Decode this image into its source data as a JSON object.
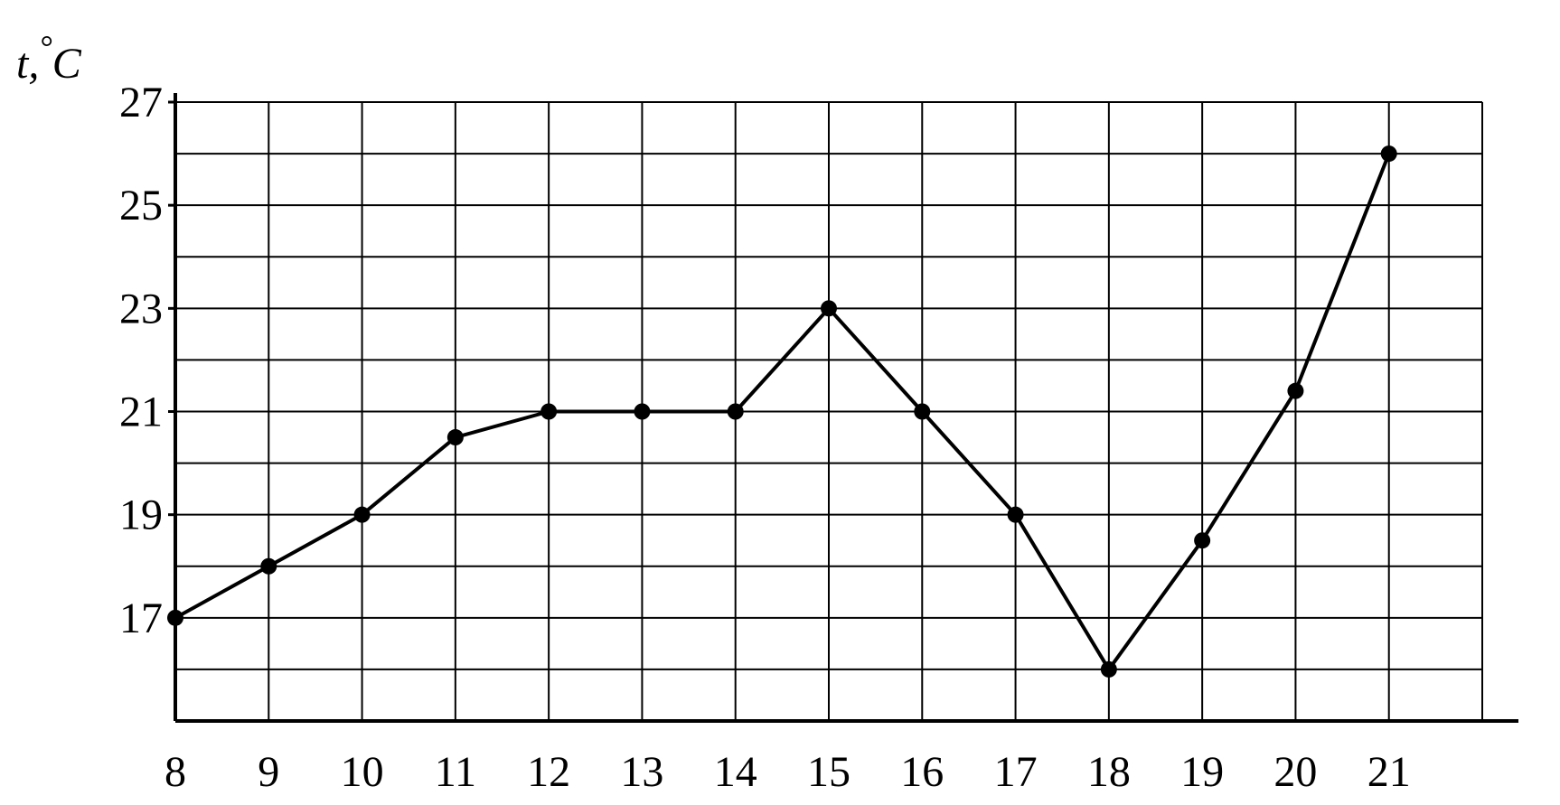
{
  "chart_data": {
    "type": "line",
    "title": "",
    "xlabel": "",
    "ylabel": "t,°C",
    "ylabel_parts": {
      "var": "t,",
      "deg": "°",
      "unit": "C"
    },
    "x": [
      8,
      9,
      10,
      11,
      12,
      13,
      14,
      15,
      16,
      17,
      18,
      19,
      20,
      21
    ],
    "series": [
      {
        "values": [
          17,
          18,
          19,
          20.5,
          21,
          21,
          21,
          23,
          21,
          19,
          16,
          18.5,
          21.4,
          26
        ]
      }
    ],
    "xlim": [
      8,
      22
    ],
    "ylim": [
      15,
      27
    ],
    "x_ticks": [
      8,
      9,
      10,
      11,
      12,
      13,
      14,
      15,
      16,
      17,
      18,
      19,
      20,
      21
    ],
    "y_ticks": [
      17,
      19,
      21,
      23,
      25,
      27
    ],
    "grid": true,
    "grid_y_step": 1,
    "line_color": "#000000",
    "marker_color": "#000000",
    "grid_color": "#000000",
    "legend": "none"
  }
}
